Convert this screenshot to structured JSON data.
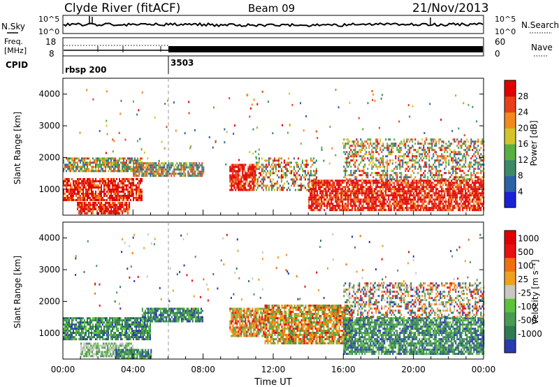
{
  "header": {
    "station": "Clyde River (fitACF)",
    "beam": "Beam 09",
    "date": "21/Nov/2013"
  },
  "top_panels": {
    "nsky_label": "N.Sky",
    "nsearch_label": "N.Search",
    "freq_label_line1": "Freq.",
    "freq_label_line2": "[MHz]",
    "nave_label": "Nave",
    "cpid_label": "CPID",
    "noise_left_ticks": [
      "10^5",
      "10^0"
    ],
    "noise_right_ticks": [
      "10^5",
      "10^0"
    ],
    "freq_ticks": [
      "18",
      "8"
    ],
    "nave_ticks": [
      "60",
      "0"
    ],
    "cpid_segments": [
      {
        "start_hour": 0,
        "label": "rbsp 200"
      },
      {
        "start_hour": 6,
        "label": "3503"
      }
    ]
  },
  "time_axis": {
    "label": "Time UT",
    "ticks": [
      "00:00",
      "04:00",
      "08:00",
      "12:00",
      "16:00",
      "20:00",
      "00:00"
    ]
  },
  "chart_data": [
    {
      "type": "heatmap",
      "title": "",
      "xlabel": "Time UT",
      "ylabel": "Slant Range [km]",
      "x_range_hours": [
        0,
        24
      ],
      "ylim": [
        180,
        4500
      ],
      "y_ticks": [
        1000,
        2000,
        3000,
        4000
      ],
      "colorbar_label": "Power [dB]",
      "colorbar_ticks": [
        "4",
        "8",
        "12",
        "16",
        "20",
        "24",
        "28"
      ],
      "colorbar_colors": [
        "#1a22d8",
        "#2c62a8",
        "#3c8a66",
        "#58b040",
        "#d2c42a",
        "#f08a1c",
        "#e8401a",
        "#e00000"
      ],
      "scatter_regions": [
        {
          "t_start": 0.0,
          "t_end": 4.5,
          "r_low": 650,
          "r_high": 1350,
          "level": "high"
        },
        {
          "t_start": 0.0,
          "t_end": 4.5,
          "r_low": 1550,
          "r_high": 2000,
          "level": "mid"
        },
        {
          "t_start": 4.0,
          "t_end": 8.0,
          "r_low": 1400,
          "r_high": 1850,
          "level": "mid"
        },
        {
          "t_start": 0.8,
          "t_end": 3.8,
          "r_low": 250,
          "r_high": 600,
          "level": "high"
        },
        {
          "t_start": 9.5,
          "t_end": 11.0,
          "r_low": 1000,
          "r_high": 1800,
          "level": "high"
        },
        {
          "t_start": 11.0,
          "t_end": 14.5,
          "r_low": 1000,
          "r_high": 2000,
          "level": "mixed"
        },
        {
          "t_start": 14.0,
          "t_end": 24.0,
          "r_low": 350,
          "r_high": 1300,
          "level": "high"
        },
        {
          "t_start": 16.0,
          "t_end": 24.0,
          "r_low": 1300,
          "r_high": 2600,
          "level": "mixed"
        }
      ]
    },
    {
      "type": "heatmap",
      "title": "",
      "xlabel": "Time UT",
      "ylabel": "Slant Range [km]",
      "x_range_hours": [
        0,
        24
      ],
      "ylim": [
        180,
        4500
      ],
      "y_ticks": [
        1000,
        2000,
        3000,
        4000
      ],
      "colorbar_label": "Velocity [m s⁻¹]",
      "colorbar_ticks": [
        "1000",
        "500",
        "100",
        "25",
        "-25",
        "-100",
        "-500",
        "-1000"
      ],
      "colorbar_colors": [
        "#2a3ab0",
        "#2e7a52",
        "#4a9a54",
        "#5cc23a",
        "#c8c8c0",
        "#f0a020",
        "#f07010",
        "#e81010",
        "#e00000"
      ],
      "scatter_regions": [
        {
          "t_start": 0.0,
          "t_end": 5.0,
          "r_low": 800,
          "r_high": 1500,
          "level": "green"
        },
        {
          "t_start": 4.5,
          "t_end": 8.0,
          "r_low": 1400,
          "r_high": 1800,
          "level": "green"
        },
        {
          "t_start": 1.0,
          "t_end": 4.0,
          "r_low": 250,
          "r_high": 700,
          "level": "grey"
        },
        {
          "t_start": 3.0,
          "t_end": 5.0,
          "r_low": 200,
          "r_high": 500,
          "level": "green"
        },
        {
          "t_start": 9.5,
          "t_end": 11.5,
          "r_low": 900,
          "r_high": 1800,
          "level": "orange"
        },
        {
          "t_start": 11.5,
          "t_end": 16.5,
          "r_low": 700,
          "r_high": 1900,
          "level": "orange"
        },
        {
          "t_start": 16.0,
          "t_end": 24.0,
          "r_low": 350,
          "r_high": 1500,
          "level": "green"
        },
        {
          "t_start": 16.0,
          "t_end": 24.0,
          "r_low": 1500,
          "r_high": 2600,
          "level": "mixed"
        }
      ]
    }
  ]
}
